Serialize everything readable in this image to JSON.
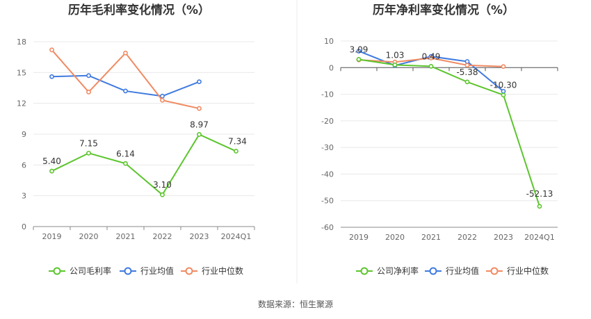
{
  "source": "数据来源：恒生聚源",
  "colors": {
    "company": "#5cc52d",
    "industry_avg": "#3f7adf",
    "industry_median": "#f08a62"
  },
  "chart_data": [
    {
      "type": "line",
      "title": "历年毛利率变化情况（%）",
      "categories": [
        "2019",
        "2020",
        "2021",
        "2022",
        "2023",
        "2024Q1"
      ],
      "ylim": [
        0,
        18
      ],
      "yticks": [
        0,
        3,
        6,
        9,
        12,
        15,
        18
      ],
      "grid": true,
      "legend_position": "bottom",
      "series": [
        {
          "name": "公司毛利率",
          "key": "company",
          "values": [
            5.4,
            7.15,
            6.14,
            3.1,
            8.97,
            7.34
          ],
          "labels": [
            "5.40",
            "7.15",
            "6.14",
            "3.10",
            "8.97",
            "7.34"
          ]
        },
        {
          "name": "行业均值",
          "key": "industry_avg",
          "values": [
            14.6,
            14.7,
            13.2,
            12.7,
            14.1,
            null
          ]
        },
        {
          "name": "行业中位数",
          "key": "industry_median",
          "values": [
            17.2,
            13.1,
            16.9,
            12.3,
            11.5,
            null
          ]
        }
      ]
    },
    {
      "type": "line",
      "title": "历年净利率变化情况（%）",
      "categories": [
        "2019",
        "2020",
        "2021",
        "2022",
        "2023",
        "2024Q1"
      ],
      "ylim": [
        -60,
        10
      ],
      "yticks": [
        -60,
        -50,
        -40,
        -30,
        -20,
        -10,
        0,
        10
      ],
      "grid": true,
      "legend_position": "bottom",
      "series": [
        {
          "name": "公司净利率",
          "key": "company",
          "values": [
            3.09,
            1.03,
            0.49,
            -5.38,
            -10.3,
            -52.13
          ],
          "labels": [
            "3.09",
            "1.03",
            "0.49",
            "-5.38",
            "-10.30",
            "-52.13"
          ]
        },
        {
          "name": "行业均值",
          "key": "industry_avg",
          "values": [
            6.2,
            0.8,
            4.2,
            2.3,
            -8.9,
            null
          ]
        },
        {
          "name": "行业中位数",
          "key": "industry_median",
          "values": [
            2.9,
            2.1,
            3.6,
            0.9,
            0.4,
            null
          ]
        }
      ]
    }
  ]
}
